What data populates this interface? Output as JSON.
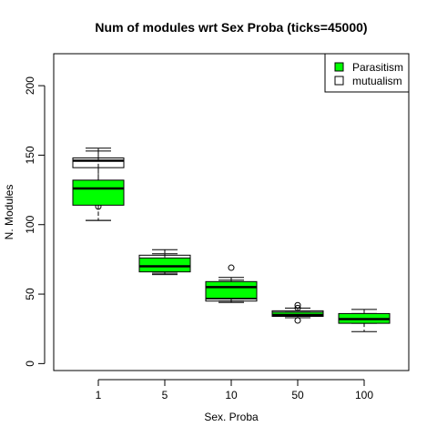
{
  "chart_data": {
    "type": "box",
    "title": "Num of modules wrt Sex Proba (ticks=45000)",
    "xlabel": "Sex. Proba",
    "ylabel": "N. Modules",
    "categories": [
      "1",
      "5",
      "10",
      "50",
      "100"
    ],
    "ylim": [
      -5,
      223
    ],
    "yticks": [
      0,
      50,
      100,
      150,
      200
    ],
    "legend": {
      "placement": "top-right"
    },
    "series": [
      {
        "name": "mutualism",
        "color": "#ffffff",
        "boxes": [
          {
            "min": 103,
            "q1": 141,
            "median": 146,
            "q3": 148,
            "max": 155,
            "outliers": [
              113
            ]
          },
          {
            "min": 64,
            "q1": 67,
            "median": 71,
            "q3": 78,
            "max": 82,
            "outliers": []
          },
          {
            "min": 44,
            "q1": 45,
            "median": 47,
            "q3": 55,
            "max": 60,
            "outliers": []
          },
          {
            "min": 33,
            "q1": 34,
            "median": 35,
            "q3": 38,
            "max": 40,
            "outliers": [
              42,
              40
            ]
          },
          {
            "min": 29,
            "q1": 31,
            "median": 32,
            "q3": 34,
            "max": 36,
            "outliers": []
          }
        ]
      },
      {
        "name": "Parasitism",
        "color": "#00ff00",
        "boxes": [
          {
            "min": 103,
            "q1": 114,
            "median": 126,
            "q3": 132,
            "max": 153,
            "outliers": []
          },
          {
            "min": 65,
            "q1": 66,
            "median": 70,
            "q3": 76,
            "max": 79,
            "outliers": []
          },
          {
            "min": 45,
            "q1": 47,
            "median": 55,
            "q3": 59,
            "max": 62,
            "outliers": [
              69
            ]
          },
          {
            "min": 33,
            "q1": 34,
            "median": 35,
            "q3": 37,
            "max": 37,
            "outliers": [
              31
            ]
          },
          {
            "min": 23,
            "q1": 29,
            "median": 32,
            "q3": 36,
            "max": 39,
            "outliers": []
          }
        ]
      }
    ]
  }
}
